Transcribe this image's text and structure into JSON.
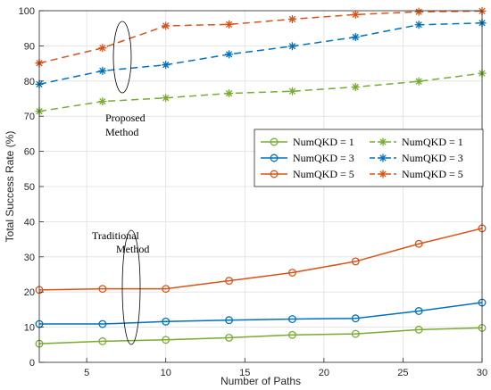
{
  "chart_data": {
    "type": "line",
    "xlabel": "Number of Paths",
    "ylabel": "Total Success Rate (%)",
    "xlim": [
      2,
      30
    ],
    "ylim": [
      0,
      100
    ],
    "xticks": [
      5,
      10,
      15,
      20,
      25,
      30
    ],
    "yticks": [
      0,
      10,
      20,
      30,
      40,
      50,
      60,
      70,
      80,
      90,
      100
    ],
    "grid": true,
    "legend_position": "center-right",
    "x": [
      2,
      6,
      10,
      14,
      18,
      22,
      26,
      30
    ],
    "series": [
      {
        "name": "NumQKD = 1",
        "group": "Traditional",
        "marker": "circle",
        "dash": "solid",
        "color": "#77AC30",
        "values": [
          5.3,
          6.0,
          6.4,
          7.0,
          7.8,
          8.1,
          9.3,
          9.8
        ]
      },
      {
        "name": "NumQKD = 3",
        "group": "Traditional",
        "marker": "circle",
        "dash": "solid",
        "color": "#0072BD",
        "values": [
          10.9,
          10.9,
          11.6,
          12.0,
          12.3,
          12.5,
          14.6,
          17.0
        ]
      },
      {
        "name": "NumQKD = 5",
        "group": "Traditional",
        "marker": "circle",
        "dash": "solid",
        "color": "#D95319",
        "values": [
          20.6,
          20.9,
          20.9,
          23.2,
          25.5,
          28.7,
          33.7,
          38.1
        ]
      },
      {
        "name": "NumQKD = 1",
        "group": "Proposed",
        "marker": "star",
        "dash": "dashed",
        "color": "#77AC30",
        "values": [
          71.4,
          74.2,
          75.2,
          76.5,
          77.1,
          78.3,
          79.9,
          82.2
        ]
      },
      {
        "name": "NumQKD = 3",
        "group": "Proposed",
        "marker": "star",
        "dash": "dashed",
        "color": "#0072BD",
        "values": [
          79.1,
          82.9,
          84.6,
          87.6,
          89.9,
          92.5,
          96.0,
          96.5
        ]
      },
      {
        "name": "NumQKD = 5",
        "group": "Proposed",
        "marker": "star",
        "dash": "dashed",
        "color": "#D95319",
        "values": [
          85.1,
          89.4,
          95.7,
          96.1,
          97.6,
          98.9,
          99.7,
          99.9
        ]
      }
    ],
    "annotations": [
      {
        "line1": "Proposed",
        "line2": "Method"
      },
      {
        "line1": "Traditional",
        "line2": "Method"
      }
    ]
  }
}
